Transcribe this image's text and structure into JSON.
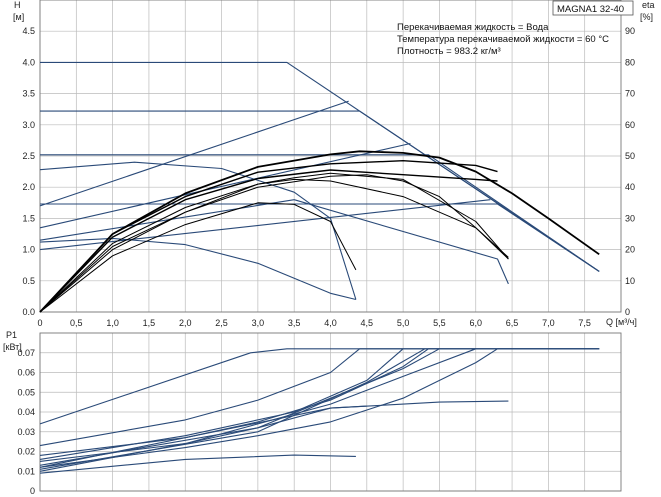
{
  "chart_data": [
    {
      "type": "line",
      "title": "MAGNA1 32-40",
      "annotations": [
        "Перекачиваемая жидкость = Вода",
        "Температура перекачиваемой жидкости = 60 °C",
        "Плотность = 983.2 кг/м³"
      ],
      "y_unit_label": "H",
      "y_unit": "[м]",
      "y2_unit_label": "eta",
      "y2_unit": "[%]",
      "x_unit_label": "Q [м³/ч]",
      "xlim": [
        0,
        8
      ],
      "ylim": [
        0,
        5
      ],
      "y2lim": [
        0,
        100
      ],
      "x_ticks": [
        "0",
        "0,5",
        "1,0",
        "1,5",
        "2,0",
        "2,5",
        "3,0",
        "3,5",
        "4,0",
        "4,5",
        "5,0",
        "5,5",
        "6,0",
        "6,5",
        "7,0",
        "7,5"
      ],
      "y_ticks": [
        "0.0",
        "0.5",
        "1.0",
        "1.5",
        "2.0",
        "2.5",
        "3.0",
        "3.5",
        "4.0",
        "4.5"
      ],
      "y2_ticks": [
        "0",
        "10",
        "20",
        "30",
        "40",
        "50",
        "60",
        "70",
        "80",
        "90"
      ],
      "grid": true,
      "series": [
        {
          "group": "head",
          "color": "#2a4a78",
          "width": 1.1,
          "points": [
            [
              0,
              4.0
            ],
            [
              3.4,
              4.0
            ],
            [
              7.7,
              0.65
            ]
          ]
        },
        {
          "group": "head",
          "color": "#2a4a78",
          "width": 1.1,
          "points": [
            [
              0,
              3.22
            ],
            [
              4.4,
              3.22
            ],
            [
              7.7,
              0.65
            ]
          ]
        },
        {
          "group": "head",
          "color": "#2a4a78",
          "width": 1.1,
          "points": [
            [
              0,
              2.52
            ],
            [
              5.35,
              2.52
            ],
            [
              7.7,
              0.65
            ]
          ]
        },
        {
          "group": "head",
          "color": "#2a4a78",
          "width": 1.1,
          "points": [
            [
              0,
              1.73
            ],
            [
              6.3,
              1.73
            ],
            [
              7.7,
              0.65
            ]
          ]
        },
        {
          "group": "system",
          "color": "#2a4a78",
          "width": 1.1,
          "points": [
            [
              0,
              1.7
            ],
            [
              4.25,
              3.38
            ]
          ]
        },
        {
          "group": "system",
          "color": "#2a4a78",
          "width": 1.1,
          "points": [
            [
              0,
              1.35
            ],
            [
              5.1,
              2.7
            ]
          ]
        },
        {
          "group": "system",
          "color": "#2a4a78",
          "width": 1.1,
          "points": [
            [
              0,
              1.0
            ],
            [
              6.2,
              1.8
            ]
          ]
        },
        {
          "group": "head",
          "color": "#2a4a78",
          "width": 1.1,
          "points": [
            [
              0,
              2.28
            ],
            [
              1.3,
              2.4
            ],
            [
              2.5,
              2.3
            ],
            [
              3.5,
              1.92
            ],
            [
              4.0,
              1.5
            ],
            [
              4.35,
              0.2
            ]
          ]
        },
        {
          "group": "head",
          "color": "#2a4a78",
          "width": 1.1,
          "points": [
            [
              0,
              1.12
            ],
            [
              1.0,
              1.18
            ],
            [
              2.0,
              1.08
            ],
            [
              3.0,
              0.78
            ],
            [
              4.0,
              0.3
            ],
            [
              4.35,
              0.2
            ]
          ]
        },
        {
          "group": "head",
          "color": "#2a4a78",
          "width": 1.1,
          "points": [
            [
              0,
              1.15
            ],
            [
              3.5,
              1.8
            ],
            [
              6.3,
              0.85
            ],
            [
              6.45,
              0.45
            ]
          ]
        },
        {
          "group": "eta",
          "color": "#000000",
          "width": 1.8,
          "points": [
            [
              0,
              0
            ],
            [
              1.0,
              25
            ],
            [
              2.0,
              38
            ],
            [
              3.0,
              46.5
            ],
            [
              4.0,
              50.5
            ],
            [
              4.4,
              51.5
            ],
            [
              5.0,
              51
            ],
            [
              5.5,
              49.5
            ],
            [
              6.0,
              45
            ],
            [
              6.5,
              38
            ],
            [
              7.0,
              30
            ],
            [
              7.7,
              18.5
            ]
          ]
        },
        {
          "group": "eta",
          "color": "#000000",
          "width": 1.4,
          "points": [
            [
              0,
              0
            ],
            [
              1.0,
              25
            ],
            [
              2.0,
              37
            ],
            [
              3.0,
              44.8
            ],
            [
              4.0,
              47.5
            ],
            [
              5.0,
              48.5
            ],
            [
              6.0,
              47
            ],
            [
              6.3,
              45
            ]
          ]
        },
        {
          "group": "eta",
          "color": "#000000",
          "width": 1.4,
          "points": [
            [
              0,
              0
            ],
            [
              1.0,
              24
            ],
            [
              2.0,
              36
            ],
            [
              3.0,
              42.8
            ],
            [
              4.0,
              45.5
            ],
            [
              5.0,
              44
            ],
            [
              6.0,
              42.5
            ],
            [
              6.3,
              42
            ]
          ]
        },
        {
          "group": "eta",
          "color": "#000000",
          "width": 1.0,
          "points": [
            [
              0,
              0
            ],
            [
              1.0,
              21
            ],
            [
              2.0,
              32
            ],
            [
              3.0,
              41
            ],
            [
              3.5,
              42.5
            ],
            [
              4.0,
              42
            ],
            [
              5.0,
              37
            ],
            [
              6.0,
              27
            ],
            [
              6.45,
              17.5
            ]
          ]
        },
        {
          "group": "eta",
          "color": "#000000",
          "width": 1.0,
          "points": [
            [
              0,
              0
            ],
            [
              1.0,
              22
            ],
            [
              2.0,
              33.5
            ],
            [
              3.0,
              41
            ],
            [
              3.5,
              43
            ],
            [
              4.0,
              44.5
            ],
            [
              5.0,
              42.5
            ],
            [
              6.0,
              29
            ],
            [
              6.45,
              17
            ]
          ]
        },
        {
          "group": "eta",
          "color": "#000000",
          "width": 1.0,
          "points": [
            [
              0,
              0
            ],
            [
              1.0,
              18
            ],
            [
              2.0,
              28
            ],
            [
              3.0,
              35
            ],
            [
              3.5,
              34.5
            ],
            [
              4.0,
              29
            ],
            [
              4.35,
              13.5
            ]
          ]
        },
        {
          "group": "eta",
          "color": "#000000",
          "width": 1.0,
          "points": [
            [
              0,
              0
            ],
            [
              1.0,
              20
            ],
            [
              2.0,
              32
            ],
            [
              3.0,
              40
            ],
            [
              4.0,
              43.5
            ],
            [
              4.5,
              44
            ],
            [
              5.0,
              42
            ],
            [
              5.5,
              37
            ],
            [
              6.0,
              27
            ],
            [
              6.45,
              17
            ]
          ]
        }
      ]
    },
    {
      "type": "line",
      "y_unit_label": "P1",
      "y_unit": "[кВт]",
      "xlim": [
        0,
        8
      ],
      "ylim": [
        0,
        0.08
      ],
      "y_ticks": [
        "0",
        "0.01",
        "0.02",
        "0.03",
        "0.04",
        "0.05",
        "0.06",
        "0.07"
      ],
      "grid": true,
      "series": [
        {
          "color": "#2a4a78",
          "width": 1.1,
          "points": [
            [
              0,
              0.034
            ],
            [
              2.9,
              0.07
            ],
            [
              3.4,
              0.072
            ],
            [
              7.7,
              0.072
            ]
          ]
        },
        {
          "color": "#2a4a78",
          "width": 1.1,
          "points": [
            [
              0,
              0.023
            ],
            [
              2.0,
              0.036
            ],
            [
              3.0,
              0.046
            ],
            [
              4.0,
              0.06
            ],
            [
              4.4,
              0.072
            ],
            [
              7.7,
              0.072
            ]
          ]
        },
        {
          "color": "#2a4a78",
          "width": 1.1,
          "points": [
            [
              0,
              0.018
            ],
            [
              2.0,
              0.027
            ],
            [
              3.0,
              0.035
            ],
            [
              4.0,
              0.046
            ],
            [
              5.0,
              0.063
            ],
            [
              5.35,
              0.072
            ],
            [
              7.7,
              0.072
            ]
          ]
        },
        {
          "color": "#2a4a78",
          "width": 1.1,
          "points": [
            [
              0,
              0.012
            ],
            [
              2.0,
              0.022
            ],
            [
              3.0,
              0.028
            ],
            [
              4.0,
              0.035
            ],
            [
              5.0,
              0.047
            ],
            [
              6.0,
              0.065
            ],
            [
              6.3,
              0.072
            ],
            [
              7.7,
              0.072
            ]
          ]
        },
        {
          "color": "#2a4a78",
          "width": 1.1,
          "points": [
            [
              0,
              0.015
            ],
            [
              2.0,
              0.024
            ],
            [
              4.0,
              0.044
            ],
            [
              5.0,
              0.058
            ],
            [
              6.0,
              0.072
            ]
          ]
        },
        {
          "color": "#2a4a78",
          "width": 1.1,
          "points": [
            [
              0,
              0.016
            ],
            [
              2.0,
              0.028
            ],
            [
              3.5,
              0.04
            ],
            [
              4.5,
              0.056
            ],
            [
              5.0,
              0.072
            ]
          ]
        },
        {
          "color": "#2a4a78",
          "width": 1.1,
          "points": [
            [
              0,
              0.011
            ],
            [
              3.0,
              0.03
            ],
            [
              4.5,
              0.055
            ],
            [
              5.3,
              0.072
            ]
          ]
        },
        {
          "color": "#2a4a78",
          "width": 1.1,
          "points": [
            [
              0,
              0.013
            ],
            [
              3.0,
              0.032
            ],
            [
              5.0,
              0.062
            ],
            [
              5.5,
              0.072
            ]
          ]
        },
        {
          "color": "#2a4a78",
          "width": 1.1,
          "points": [
            [
              0,
              0.012
            ],
            [
              4.0,
              0.042
            ],
            [
              5.5,
              0.045
            ],
            [
              6.45,
              0.0455
            ]
          ]
        },
        {
          "color": "#2a4a78",
          "width": 1.1,
          "points": [
            [
              0,
              0.01
            ],
            [
              2.0,
              0.024
            ],
            [
              3.0,
              0.032
            ],
            [
              4.0,
              0.042
            ],
            [
              4.5,
              0.043
            ]
          ]
        },
        {
          "color": "#2a4a78",
          "width": 1.1,
          "points": [
            [
              0,
              0.009
            ],
            [
              2.0,
              0.016
            ],
            [
              3.5,
              0.0182
            ],
            [
              4.35,
              0.0175
            ]
          ]
        }
      ]
    }
  ]
}
